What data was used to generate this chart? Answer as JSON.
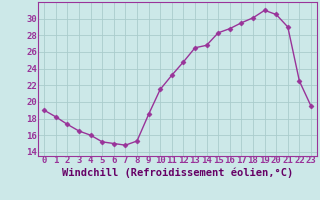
{
  "x": [
    0,
    1,
    2,
    3,
    4,
    5,
    6,
    7,
    8,
    9,
    10,
    11,
    12,
    13,
    14,
    15,
    16,
    17,
    18,
    19,
    20,
    21,
    22,
    23
  ],
  "y": [
    19.0,
    18.2,
    17.3,
    16.5,
    16.0,
    15.2,
    15.0,
    14.8,
    15.3,
    18.5,
    21.5,
    23.2,
    24.8,
    26.5,
    26.8,
    28.3,
    28.8,
    29.5,
    30.1,
    31.0,
    30.5,
    29.0,
    22.5,
    19.5
  ],
  "line_color": "#993399",
  "marker": "D",
  "markersize": 2.5,
  "linewidth": 1.0,
  "xlabel": "Windchill (Refroidissement éolien,°C)",
  "xlabel_fontsize": 7.5,
  "xlabel_color": "#660066",
  "ylim": [
    13.5,
    32
  ],
  "xlim": [
    -0.5,
    23.5
  ],
  "yticks": [
    14,
    16,
    18,
    20,
    22,
    24,
    26,
    28,
    30
  ],
  "xtick_labels": [
    "0",
    "1",
    "2",
    "3",
    "4",
    "5",
    "6",
    "7",
    "8",
    "9",
    "10",
    "11",
    "12",
    "13",
    "14",
    "15",
    "16",
    "17",
    "18",
    "19",
    "20",
    "21",
    "22",
    "23"
  ],
  "background_color": "#cce8e8",
  "grid_color": "#aacccc",
  "tick_color": "#993399",
  "tick_fontsize": 6.5,
  "spine_color": "#993399"
}
